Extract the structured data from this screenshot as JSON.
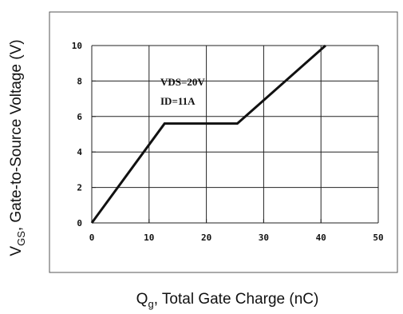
{
  "chart_data": {
    "type": "line",
    "title": "",
    "xlabel": {
      "main": "Q",
      "sub": "g",
      "rest": ", Total Gate Charge (nC)"
    },
    "ylabel": {
      "main": "V",
      "sub": "GS",
      "rest": ", Gate-to-Source Voltage (V)"
    },
    "xlim": [
      0,
      50
    ],
    "ylim": [
      0,
      10
    ],
    "x_ticks": [
      0,
      10,
      20,
      30,
      40,
      50
    ],
    "y_ticks": [
      0,
      2,
      4,
      6,
      8,
      10
    ],
    "x_tick_labels": [
      "0",
      "10",
      "20",
      "30",
      "40",
      "50"
    ],
    "y_tick_labels": [
      "0",
      "2",
      "4",
      "6",
      "8",
      "10"
    ],
    "grid": true,
    "annotations": [
      "VDS=20V",
      "ID=11A"
    ],
    "series": [
      {
        "x": [
          0,
          12.7,
          25.4,
          40.8
        ],
        "y": [
          0,
          5.6,
          5.6,
          10
        ]
      }
    ],
    "colors": {
      "line": "#111111",
      "grid": "#222222",
      "frame": "#555555"
    }
  }
}
